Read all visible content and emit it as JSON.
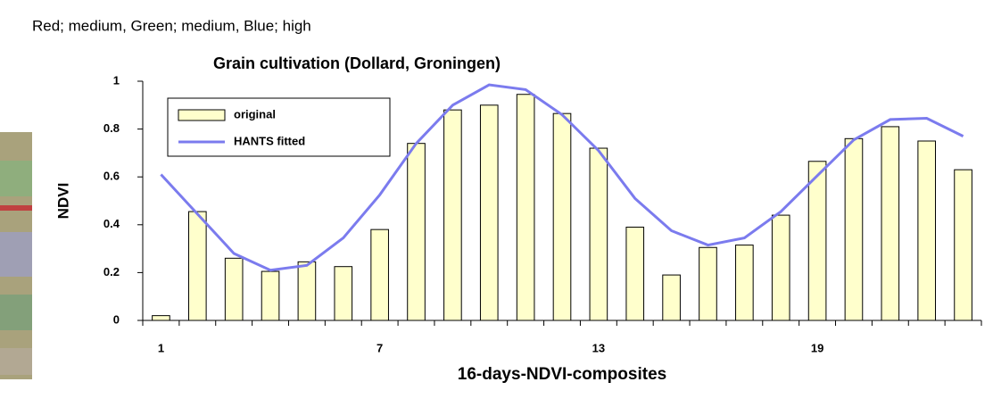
{
  "caption": "Red; medium, Green; medium, Blue; high",
  "chart_data": {
    "type": "bar-line",
    "title": "Grain cultivation (Dollard, Groningen)",
    "x_label": "16-days-NDVI-composites",
    "y_label": "NDVI",
    "categories": [
      "1",
      null,
      null,
      null,
      null,
      null,
      "7",
      null,
      null,
      null,
      null,
      null,
      "13",
      null,
      null,
      null,
      null,
      null,
      "19",
      null,
      null,
      null,
      null
    ],
    "series": [
      {
        "name": "original",
        "kind": "bar",
        "color": "#ffffcc",
        "values": [
          0.02,
          0.455,
          0.26,
          0.205,
          0.245,
          0.225,
          0.38,
          0.74,
          0.88,
          0.9,
          0.945,
          0.865,
          0.72,
          0.39,
          0.19,
          0.305,
          0.315,
          0.44,
          0.665,
          0.76,
          0.81,
          0.75,
          0.63
        ]
      },
      {
        "name": "HANTS fitted",
        "kind": "line",
        "color": "#7b7bee",
        "values": [
          0.61,
          0.445,
          0.28,
          0.21,
          0.23,
          0.345,
          0.525,
          0.74,
          0.9,
          0.985,
          0.965,
          0.86,
          0.71,
          0.51,
          0.375,
          0.315,
          0.345,
          0.455,
          0.605,
          0.755,
          0.84,
          0.845,
          0.77
        ]
      }
    ],
    "ylim": [
      0,
      1
    ],
    "yticks": [
      0,
      0.2,
      0.4,
      0.6,
      0.8,
      1
    ]
  }
}
